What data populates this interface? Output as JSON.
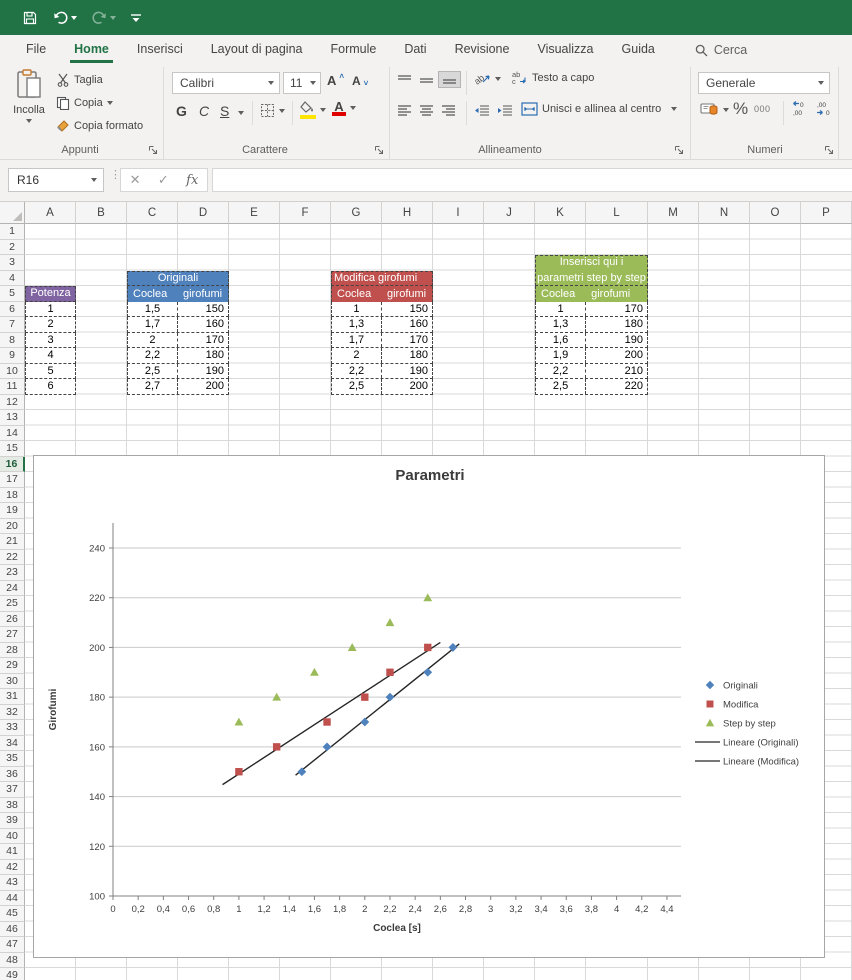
{
  "titlebar": {
    "accent_color": "#217346",
    "icons": [
      "save",
      "undo",
      "redo",
      "customize-quick-access"
    ]
  },
  "tabs": {
    "items": [
      {
        "label": "File",
        "active": false
      },
      {
        "label": "Home",
        "active": true
      },
      {
        "label": "Inserisci",
        "active": false
      },
      {
        "label": "Layout di pagina",
        "active": false
      },
      {
        "label": "Formule",
        "active": false
      },
      {
        "label": "Dati",
        "active": false
      },
      {
        "label": "Revisione",
        "active": false
      },
      {
        "label": "Visualizza",
        "active": false
      },
      {
        "label": "Guida",
        "active": false
      }
    ],
    "search_label": "Cerca"
  },
  "ribbon": {
    "groups": {
      "clipboard": "Appunti",
      "font": "Carattere",
      "alignment": "Allineamento",
      "number": "Numeri"
    },
    "clipboard": {
      "paste": "Incolla",
      "cut": "Taglia",
      "copy": "Copia",
      "format_painter": "Copia formato"
    },
    "font": {
      "family": "Calibri",
      "size": "11",
      "bold": "G",
      "italic": "C",
      "underline": "S"
    },
    "alignment": {
      "wrap_text": "Testo a capo",
      "merge_center": "Unisci e allinea al centro"
    },
    "number": {
      "format": "Generale",
      "percent": "%",
      "thousands": "000"
    }
  },
  "formula_bar": {
    "name_box": "R16",
    "fx_label": "fx"
  },
  "sheet": {
    "columns": [
      "A",
      "B",
      "C",
      "D",
      "E",
      "F",
      "G",
      "H",
      "I",
      "J",
      "K",
      "L",
      "M",
      "N",
      "O",
      "P"
    ],
    "row_count": 49,
    "selected_row": 16,
    "tables": [
      {
        "id": "potenza",
        "title_lines": [
          "Potenza"
        ],
        "color": "#8064A2",
        "start_col": "A",
        "title_row": 5,
        "cols": [],
        "align": [
          "center"
        ],
        "data": [
          [
            "1"
          ],
          [
            "2"
          ],
          [
            "3"
          ],
          [
            "4"
          ],
          [
            "5"
          ],
          [
            "6"
          ]
        ]
      },
      {
        "id": "originali",
        "title_lines": [
          "Originali"
        ],
        "title_align": "center",
        "color": "#4F81BD",
        "start_col": "C",
        "title_row": 4,
        "cols": [
          "Coclea",
          "girofumi"
        ],
        "align": [
          "center",
          "right"
        ],
        "data": [
          [
            "1,5",
            "150"
          ],
          [
            "1,7",
            "160"
          ],
          [
            "2",
            "170"
          ],
          [
            "2,2",
            "180"
          ],
          [
            "2,5",
            "190"
          ],
          [
            "2,7",
            "200"
          ]
        ]
      },
      {
        "id": "modifica",
        "title_lines": [
          "Modifica girofumi"
        ],
        "title_align": "left",
        "color": "#C0504D",
        "start_col": "G",
        "title_row": 4,
        "cols": [
          "Coclea",
          "girofumi"
        ],
        "align": [
          "center",
          "right"
        ],
        "data": [
          [
            "1",
            "150"
          ],
          [
            "1,3",
            "160"
          ],
          [
            "1,7",
            "170"
          ],
          [
            "2",
            "180"
          ],
          [
            "2,2",
            "190"
          ],
          [
            "2,5",
            "200"
          ]
        ]
      },
      {
        "id": "step-by-step",
        "title_lines": [
          "Inserisci qui i",
          "parametri step by step"
        ],
        "title_align": "center",
        "color": "#9BBB59",
        "start_col": "K",
        "title_row": 3,
        "cols": [
          "Coclea",
          "girofumi"
        ],
        "align": [
          "center",
          "right"
        ],
        "data": [
          [
            "1",
            "170"
          ],
          [
            "1,3",
            "180"
          ],
          [
            "1,6",
            "190"
          ],
          [
            "1,9",
            "200"
          ],
          [
            "2,2",
            "210"
          ],
          [
            "2,5",
            "220"
          ]
        ]
      }
    ]
  },
  "chart_data": {
    "type": "scatter",
    "title": "Parametri",
    "xlabel": "Coclea [s]",
    "ylabel": "Girofumi",
    "xlim": [
      0,
      4.4
    ],
    "xstep": 0.2,
    "ylim": [
      100,
      240
    ],
    "ystep": 20,
    "grid": "horizontal",
    "legend_position": "right",
    "series": [
      {
        "name": "Originali",
        "marker": "diamond",
        "color": "#4F81BD",
        "points": [
          [
            1.5,
            150
          ],
          [
            1.7,
            160
          ],
          [
            2,
            170
          ],
          [
            2.2,
            180
          ],
          [
            2.5,
            190
          ],
          [
            2.7,
            200
          ]
        ]
      },
      {
        "name": "Modifica",
        "marker": "square",
        "color": "#C0504D",
        "points": [
          [
            1,
            150
          ],
          [
            1.3,
            160
          ],
          [
            1.7,
            170
          ],
          [
            2,
            180
          ],
          [
            2.2,
            190
          ],
          [
            2.5,
            200
          ]
        ]
      },
      {
        "name": "Step by step",
        "marker": "triangle",
        "color": "#9BBB59",
        "points": [
          [
            1,
            170
          ],
          [
            1.3,
            180
          ],
          [
            1.6,
            190
          ],
          [
            1.9,
            200
          ],
          [
            2.2,
            210
          ],
          [
            2.5,
            220
          ]
        ]
      }
    ],
    "trendlines": [
      {
        "name": "Lineare (Originali)",
        "color": "#262626",
        "x1": 1.45,
        "y1": 148.6,
        "x2": 2.75,
        "y2": 201.4
      },
      {
        "name": "Lineare (Modifica)",
        "color": "#262626",
        "x1": 0.87,
        "y1": 144.8,
        "x2": 2.6,
        "y2": 202.0
      }
    ]
  }
}
